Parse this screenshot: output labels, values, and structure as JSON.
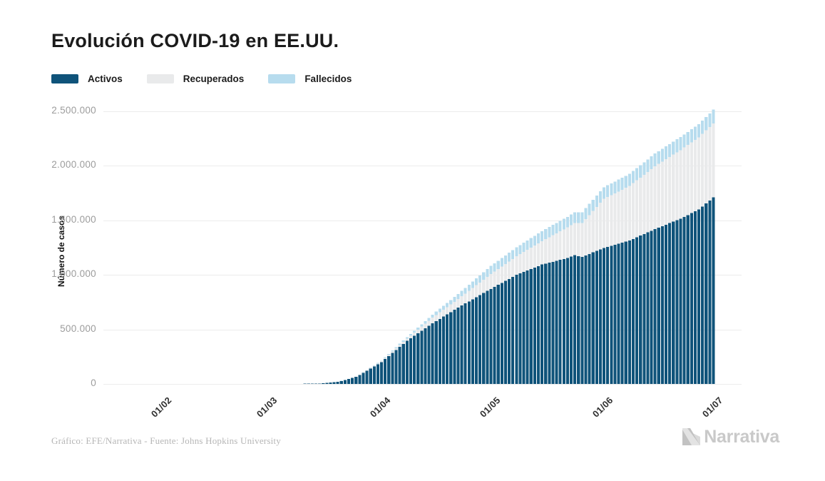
{
  "page": {
    "title": "Evolución COVID-19 en EE.UU."
  },
  "legend": {
    "items": [
      {
        "id": "activos",
        "label": "Activos"
      },
      {
        "id": "recuperados",
        "label": "Recuperados"
      },
      {
        "id": "fallecidos",
        "label": "Fallecidos"
      }
    ]
  },
  "axes": {
    "y_label": "Número de casos"
  },
  "footer": {
    "credit": "Gráfico: EFE/Narrativa - Fuente: Johns Hopkins University",
    "logo_text": "Narrativa"
  },
  "colors": {
    "activos": "#0f537a",
    "recuperados": "#e9eaeb",
    "fallecidos": "#b7dcee",
    "grid": "#ececec",
    "title": "#1b1b1b",
    "y_tick_text": "#9c9c9c",
    "x_tick_text": "#2f2f2f",
    "credit_text": "#b6b6b6",
    "logo_gray": "#c9c9c9"
  },
  "chart_data": {
    "type": "bar",
    "stacked": true,
    "frequency": "daily",
    "title": "Evolución COVID-19 en EE.UU.",
    "xlabel": "",
    "ylabel": "Número de casos",
    "ylim": [
      0,
      2600000
    ],
    "grid": "horizontal",
    "legend_position": "top-left",
    "start_date": "2020-01-22",
    "end_date": "2020-07-01",
    "num_days": 162,
    "series_names": [
      "Activos",
      "Recuperados",
      "Fallecidos"
    ],
    "series_colors": {
      "activos": "#0f537a",
      "recuperados": "#e9eaeb",
      "fallecidos": "#b7dcee"
    },
    "stack_order_bottom_to_top": [
      "activos",
      "recuperados",
      "fallecidos"
    ],
    "y_ticks": [
      {
        "value": 0,
        "label": "0"
      },
      {
        "value": 500000,
        "label": "500.000"
      },
      {
        "value": 1000000,
        "label": "1.000.000"
      },
      {
        "value": 1500000,
        "label": "1.500.000"
      },
      {
        "value": 2000000,
        "label": "2.000.000"
      },
      {
        "value": 2500000,
        "label": "2.500.000"
      }
    ],
    "x_ticks": [
      {
        "label": "01/02",
        "day_index": 10
      },
      {
        "label": "01/03",
        "day_index": 39
      },
      {
        "label": "01/04",
        "day_index": 70
      },
      {
        "label": "01/05",
        "day_index": 100
      },
      {
        "label": "01/06",
        "day_index": 131
      },
      {
        "label": "01/07",
        "day_index": 161
      }
    ],
    "anchors": {
      "note": "values estimated from chart pixels; daily bars are linearly interpolated between anchor dates",
      "dates": [
        "2020-01-22",
        "2020-02-01",
        "2020-02-15",
        "2020-03-01",
        "2020-03-08",
        "2020-03-15",
        "2020-03-20",
        "2020-03-25",
        "2020-04-01",
        "2020-04-08",
        "2020-04-15",
        "2020-04-22",
        "2020-05-01",
        "2020-05-08",
        "2020-05-15",
        "2020-05-22",
        "2020-05-24",
        "2020-05-26",
        "2020-06-01",
        "2020-06-08",
        "2020-06-15",
        "2020-06-22",
        "2020-06-27",
        "2020-07-01"
      ],
      "day_index": [
        0,
        10,
        24,
        39,
        46,
        53,
        58,
        63,
        70,
        77,
        84,
        91,
        100,
        107,
        114,
        121,
        123,
        125,
        131,
        138,
        145,
        152,
        157,
        161
      ],
      "activos": [
        1,
        8,
        13,
        65,
        480,
        3400,
        18500,
        64000,
        200000,
        395000,
        556000,
        700000,
        872000,
        1000000,
        1095000,
        1155000,
        1180000,
        1165000,
        1248000,
        1315000,
        1420000,
        1515000,
        1600000,
        1710000
      ],
      "recuperados": [
        0,
        0,
        3,
        7,
        8,
        12,
        150,
        450,
        8600,
        22000,
        52000,
        78000,
        135000,
        170000,
        215000,
        280000,
        295000,
        310000,
        450000,
        500000,
        577000,
        630000,
        660000,
        680000
      ],
      "fallecidos": [
        0,
        0,
        0,
        1,
        22,
        63,
        260,
        950,
        5100,
        13000,
        28000,
        46000,
        75000,
        82000,
        92000,
        98000,
        99000,
        100000,
        106000,
        111000,
        116000,
        120000,
        122000,
        125000
      ]
    }
  }
}
